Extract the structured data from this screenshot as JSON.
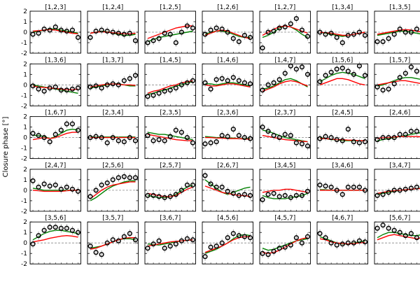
{
  "chart_data": {
    "type": "scatter",
    "ylabel": "Closure phase [°]",
    "ylim": [
      -2,
      2
    ],
    "yticks": [
      -2,
      -1,
      0,
      1,
      2
    ],
    "x_points": 9,
    "legend": [],
    "colors": {
      "observed": "#000000",
      "model_a": "#ff0000",
      "model_b": "#008000",
      "zero_line": "#888888"
    },
    "panels": [
      {
        "title": "[1,2,3]",
        "obs": [
          -0.2,
          -0.1,
          0.3,
          0.2,
          0.5,
          0.2,
          0.1,
          0.2,
          -0.5
        ],
        "red": [
          0.1,
          0.15,
          0.2,
          0.25,
          0.2,
          0.1,
          0.0,
          -0.1,
          -0.15
        ],
        "green": [
          0.0,
          0.1,
          0.2,
          0.3,
          0.3,
          0.2,
          0.1,
          0.0,
          -0.1
        ]
      },
      {
        "title": "[1,2,4]",
        "obs": [
          -0.5,
          0.1,
          0.2,
          0.1,
          0.0,
          -0.1,
          -0.2,
          -0.1,
          -0.8
        ],
        "red": [
          -0.1,
          0.0,
          0.05,
          0.0,
          -0.05,
          -0.1,
          -0.15,
          -0.15,
          -0.1
        ],
        "green": [
          -0.1,
          0.0,
          0.1,
          0.05,
          -0.1,
          -0.2,
          -0.3,
          -0.3,
          -0.2
        ]
      },
      {
        "title": "[1,2,5]",
        "obs": [
          -1.0,
          -0.8,
          -0.6,
          -0.1,
          -0.2,
          -1.0,
          0.0,
          0.6,
          0.4
        ],
        "red": [
          -0.6,
          -0.4,
          -0.2,
          0.0,
          0.2,
          0.4,
          0.5,
          0.6,
          0.6
        ],
        "green": [
          -0.9,
          -0.7,
          -0.5,
          -0.4,
          -0.3,
          -0.2,
          -0.1,
          0.0,
          0.1
        ]
      },
      {
        "title": "[1,2,6]",
        "obs": [
          -0.2,
          0.2,
          0.4,
          0.3,
          0.0,
          -0.6,
          -0.9,
          -0.3,
          -0.5
        ],
        "red": [
          -0.3,
          -0.1,
          0.1,
          0.2,
          0.1,
          -0.1,
          -0.3,
          -0.5,
          -0.6
        ],
        "green": [
          -0.2,
          0.0,
          0.1,
          0.1,
          0.0,
          -0.2,
          -0.4,
          -0.5,
          -0.5
        ]
      },
      {
        "title": "[1,2,7]",
        "obs": [
          -1.5,
          0.0,
          0.1,
          0.4,
          0.5,
          0.8,
          1.3,
          0.2,
          -0.4
        ],
        "red": [
          -0.3,
          0.0,
          0.3,
          0.5,
          0.6,
          0.5,
          0.3,
          0.1,
          -0.1
        ],
        "green": [
          -0.5,
          -0.3,
          0.0,
          0.4,
          0.6,
          0.5,
          0.2,
          -0.2,
          -0.5
        ]
      },
      {
        "title": "[1,3,4]",
        "obs": [
          0.0,
          -0.2,
          -0.1,
          -0.5,
          -1.0,
          -0.3,
          -0.2,
          0.0,
          -0.3
        ],
        "red": [
          0.0,
          -0.05,
          -0.1,
          -0.2,
          -0.3,
          -0.3,
          -0.2,
          -0.1,
          0.0
        ],
        "green": [
          0.0,
          -0.1,
          -0.2,
          -0.3,
          -0.4,
          -0.3,
          -0.2,
          -0.1,
          0.0
        ]
      },
      {
        "title": "[1,3,5]",
        "obs": [
          -0.9,
          -0.9,
          -0.6,
          -0.2,
          0.3,
          0.0,
          0.0,
          0.3,
          -0.8
        ],
        "red": [
          -0.2,
          -0.1,
          0.0,
          0.1,
          0.2,
          0.25,
          0.2,
          0.1,
          0.0
        ],
        "green": [
          -0.3,
          -0.2,
          -0.1,
          0.0,
          0.1,
          0.1,
          0.0,
          -0.1,
          -0.2
        ]
      },
      {
        "title": "[1,3,6]",
        "obs": [
          -0.1,
          -0.4,
          -0.6,
          -0.3,
          -0.2,
          -0.5,
          -0.5,
          -0.4,
          -0.3
        ],
        "red": [
          -0.1,
          -0.2,
          -0.25,
          -0.3,
          -0.35,
          -0.4,
          -0.45,
          -0.45,
          -0.4
        ],
        "green": [
          0.0,
          -0.1,
          -0.2,
          -0.3,
          -0.4,
          -0.5,
          -0.6,
          -0.7,
          -0.8
        ]
      },
      {
        "title": "[1,3,7]",
        "obs": [
          -0.2,
          -0.1,
          -0.3,
          0.0,
          0.1,
          0.0,
          0.4,
          0.6,
          0.9
        ],
        "red": [
          -0.2,
          -0.1,
          0.0,
          0.05,
          0.1,
          0.05,
          0.0,
          0.0,
          -0.05
        ],
        "green": [
          -0.3,
          -0.2,
          -0.1,
          0.0,
          0.1,
          0.1,
          0.0,
          -0.1,
          -0.1
        ]
      },
      {
        "title": "[1,4,5]",
        "obs": [
          -1.1,
          -1.0,
          -0.8,
          -0.6,
          -0.5,
          -0.3,
          0.0,
          0.2,
          0.4
        ],
        "red": [
          -0.8,
          -0.6,
          -0.5,
          -0.3,
          -0.1,
          0.0,
          0.2,
          0.3,
          0.4
        ],
        "green": [
          -0.9,
          -0.8,
          -0.6,
          -0.5,
          -0.3,
          -0.1,
          0.0,
          0.2,
          0.3
        ]
      },
      {
        "title": "[1,4,6]",
        "obs": [
          0.2,
          -0.4,
          0.5,
          0.6,
          0.4,
          0.7,
          0.4,
          0.2,
          0.1
        ],
        "red": [
          0.0,
          -0.1,
          -0.1,
          0.0,
          0.1,
          0.1,
          0.0,
          -0.1,
          -0.2
        ],
        "green": [
          0.1,
          0.1,
          0.0,
          0.1,
          0.2,
          0.2,
          0.1,
          0.0,
          -0.1
        ]
      },
      {
        "title": "[1,4,7]",
        "obs": [
          -0.5,
          0.0,
          0.2,
          0.5,
          1.1,
          1.8,
          1.5,
          1.7,
          1.0
        ],
        "red": [
          -0.6,
          -0.4,
          -0.2,
          0.1,
          0.3,
          0.4,
          0.3,
          0.1,
          -0.1
        ],
        "green": [
          -0.4,
          -0.3,
          -0.1,
          0.2,
          0.5,
          0.6,
          0.4,
          0.1,
          -0.2
        ]
      },
      {
        "title": "[1,5,6]",
        "obs": [
          0.3,
          0.9,
          1.2,
          1.5,
          1.6,
          1.3,
          1.0,
          1.8,
          0.9
        ],
        "red": [
          0.0,
          0.2,
          0.4,
          0.6,
          0.6,
          0.5,
          0.3,
          0.1,
          0.0
        ],
        "green": [
          0.3,
          0.6,
          0.9,
          1.1,
          1.2,
          1.1,
          1.0,
          0.8,
          0.6
        ]
      },
      {
        "title": "[1,5,7]",
        "obs": [
          -0.2,
          -0.5,
          -0.4,
          0.1,
          0.7,
          1.1,
          1.7,
          1.3,
          0.8
        ],
        "red": [
          0.0,
          0.1,
          0.2,
          0.3,
          0.4,
          0.4,
          0.3,
          0.2,
          0.1
        ],
        "green": [
          -0.1,
          0.0,
          0.2,
          0.4,
          0.6,
          0.7,
          0.7,
          0.6,
          0.5
        ]
      },
      {
        "title": "[1,6,7]",
        "obs": [
          0.4,
          0.2,
          0.0,
          -0.4,
          0.3,
          0.7,
          1.3,
          1.3,
          0.7
        ],
        "red": [
          -0.2,
          -0.1,
          0.0,
          -0.1,
          0.0,
          0.2,
          0.4,
          0.5,
          0.5
        ],
        "green": [
          0.2,
          0.2,
          0.1,
          -0.1,
          0.1,
          0.4,
          0.7,
          0.8,
          0.7
        ]
      },
      {
        "title": "[2,3,4]",
        "obs": [
          0.0,
          0.1,
          0.0,
          -0.5,
          0.0,
          -0.3,
          -0.4,
          0.0,
          -0.3
        ],
        "red": [
          0.0,
          0.0,
          0.0,
          0.0,
          0.0,
          0.0,
          0.0,
          0.0,
          0.0
        ],
        "green": [
          0.05,
          0.05,
          0.05,
          0.05,
          0.05,
          0.05,
          0.05,
          0.05,
          0.05
        ]
      },
      {
        "title": "[2,3,5]",
        "obs": [
          0.2,
          -0.3,
          -0.2,
          -0.3,
          0.1,
          0.7,
          0.5,
          0.0,
          -0.5
        ],
        "red": [
          0.3,
          0.2,
          0.1,
          0.0,
          -0.1,
          -0.2,
          -0.25,
          -0.3,
          -0.3
        ],
        "green": [
          0.5,
          0.4,
          0.3,
          0.3,
          0.2,
          0.1,
          0.0,
          -0.1,
          -0.2
        ]
      },
      {
        "title": "[2,3,6]",
        "obs": [
          -0.6,
          -0.5,
          -0.4,
          0.2,
          0.1,
          0.8,
          0.2,
          0.0,
          -0.1
        ],
        "red": [
          0.0,
          0.0,
          -0.05,
          -0.05,
          -0.1,
          -0.1,
          -0.1,
          -0.15,
          -0.15
        ],
        "green": [
          0.1,
          0.05,
          0.0,
          0.0,
          -0.05,
          -0.05,
          -0.1,
          -0.1,
          -0.1
        ]
      },
      {
        "title": "[2,3,7]",
        "obs": [
          1.0,
          0.6,
          0.2,
          0.0,
          0.3,
          0.2,
          -0.5,
          -0.6,
          -0.8
        ],
        "red": [
          0.2,
          0.1,
          0.0,
          -0.1,
          -0.2,
          -0.25,
          -0.3,
          -0.35,
          -0.4
        ],
        "green": [
          0.7,
          0.6,
          0.4,
          0.2,
          0.0,
          -0.1,
          -0.2,
          -0.3,
          -0.4
        ]
      },
      {
        "title": "[2,4,5]",
        "obs": [
          -0.1,
          0.1,
          0.0,
          -0.2,
          -0.3,
          0.8,
          -0.4,
          -0.5,
          -0.4
        ],
        "red": [
          -0.1,
          -0.1,
          -0.15,
          -0.2,
          -0.2,
          -0.25,
          -0.25,
          -0.3,
          -0.3
        ],
        "green": [
          0.0,
          -0.1,
          -0.2,
          -0.2,
          -0.3,
          -0.3,
          -0.3,
          -0.3,
          -0.3
        ]
      },
      {
        "title": "[2,4,6]",
        "obs": [
          -0.2,
          0.0,
          0.0,
          0.0,
          0.3,
          0.3,
          0.6,
          0.6,
          0.0
        ],
        "red": [
          -0.1,
          0.0,
          0.0,
          0.05,
          0.1,
          0.1,
          0.1,
          0.1,
          0.05
        ],
        "green": [
          -0.3,
          -0.2,
          -0.1,
          0.0,
          0.1,
          0.2,
          0.3,
          0.4,
          0.5
        ]
      },
      {
        "title": "[2,4,7]",
        "obs": [
          0.9,
          0.3,
          0.6,
          0.4,
          0.5,
          0.1,
          0.3,
          0.1,
          -0.1
        ],
        "red": [
          0.0,
          -0.05,
          -0.1,
          -0.1,
          -0.1,
          -0.1,
          -0.05,
          0.0,
          0.0
        ],
        "green": [
          0.2,
          0.1,
          0.0,
          0.0,
          0.0,
          0.0,
          0.0,
          0.0,
          0.0
        ]
      },
      {
        "title": "[2,5,6]",
        "obs": [
          -0.6,
          0.0,
          0.5,
          0.7,
          1.0,
          1.2,
          1.3,
          1.2,
          1.2
        ],
        "red": [
          -0.8,
          -0.4,
          0.0,
          0.3,
          0.5,
          0.6,
          0.7,
          0.8,
          0.8
        ],
        "green": [
          -1.0,
          -0.7,
          -0.3,
          0.1,
          0.4,
          0.6,
          0.8,
          0.9,
          0.9
        ]
      },
      {
        "title": "[2,5,7]",
        "obs": [
          -0.5,
          -0.5,
          -0.6,
          -0.7,
          -0.6,
          -0.4,
          0.0,
          0.5,
          0.5
        ],
        "red": [
          -0.3,
          -0.4,
          -0.5,
          -0.6,
          -0.6,
          -0.5,
          -0.2,
          0.1,
          0.3
        ],
        "green": [
          -0.5,
          -0.6,
          -0.7,
          -0.7,
          -0.6,
          -0.4,
          0.0,
          0.3,
          0.5
        ]
      },
      {
        "title": "[2,6,7]",
        "obs": [
          1.4,
          0.6,
          0.3,
          0.3,
          -0.1,
          -0.3,
          -0.5,
          -0.4,
          -0.5
        ],
        "red": [
          0.4,
          0.2,
          0.0,
          -0.2,
          -0.3,
          -0.4,
          -0.5,
          -0.5,
          -0.6
        ],
        "green": [
          1.0,
          0.6,
          0.2,
          -0.2,
          -0.4,
          -0.2,
          0.0,
          0.2,
          0.3
        ]
      },
      {
        "title": "[3,4,5]",
        "obs": [
          -0.9,
          -0.4,
          -0.3,
          -0.6,
          -0.5,
          -0.7,
          -0.5,
          -0.5,
          -0.1
        ],
        "red": [
          -0.2,
          -0.1,
          0.0,
          0.0,
          0.1,
          0.1,
          0.0,
          -0.1,
          -0.2
        ],
        "green": [
          -0.5,
          -0.7,
          -0.8,
          -0.8,
          -0.8,
          -0.7,
          -0.6,
          -0.5,
          -0.3
        ]
      },
      {
        "title": "[3,4,6]",
        "obs": [
          0.5,
          0.4,
          0.3,
          0.0,
          -0.4,
          0.3,
          0.3,
          0.3,
          0.0
        ],
        "red": [
          0.0,
          0.0,
          0.0,
          0.0,
          0.0,
          0.0,
          0.0,
          0.0,
          0.0
        ],
        "green": [
          0.05,
          0.05,
          0.0,
          0.0,
          0.0,
          0.0,
          0.0,
          0.0,
          0.0
        ]
      },
      {
        "title": "[3,4,7]",
        "obs": [
          -0.5,
          -0.4,
          -0.2,
          0.0,
          0.0,
          0.1,
          0.2,
          0.3,
          0.1
        ],
        "red": [
          -0.3,
          -0.2,
          -0.1,
          -0.05,
          0.0,
          0.05,
          0.1,
          0.15,
          0.15
        ],
        "green": [
          -0.4,
          -0.3,
          -0.2,
          -0.1,
          0.0,
          0.05,
          0.1,
          0.15,
          0.2
        ]
      },
      {
        "title": "[3,5,6]",
        "obs": [
          -0.1,
          0.7,
          1.2,
          1.5,
          1.5,
          1.4,
          1.4,
          1.2,
          1.0
        ],
        "red": [
          0.1,
          0.2,
          0.3,
          0.45,
          0.55,
          0.65,
          0.7,
          0.65,
          0.55
        ],
        "green": [
          0.3,
          0.6,
          0.9,
          1.1,
          1.2,
          1.2,
          1.1,
          1.0,
          0.9
        ]
      },
      {
        "title": "[3,5,7]",
        "obs": [
          -0.3,
          -0.9,
          -1.1,
          0.0,
          0.3,
          0.2,
          0.6,
          0.9,
          0.3
        ],
        "red": [
          -0.6,
          -0.5,
          -0.3,
          -0.1,
          0.1,
          0.3,
          0.45,
          0.5,
          0.5
        ],
        "green": [
          -0.5,
          -0.4,
          -0.3,
          -0.1,
          0.1,
          0.3,
          0.4,
          0.4,
          0.3
        ]
      },
      {
        "title": "[3,6,7]",
        "obs": [
          -0.5,
          -0.1,
          0.2,
          -0.5,
          -0.3,
          -0.1,
          0.2,
          0.4,
          0.3
        ],
        "red": [
          -0.3,
          -0.2,
          -0.1,
          0.0,
          0.1,
          0.15,
          0.2,
          0.25,
          0.3
        ],
        "green": [
          -0.1,
          -0.15,
          -0.2,
          -0.1,
          0.0,
          0.1,
          0.2,
          0.25,
          0.3
        ]
      },
      {
        "title": "[4,5,6]",
        "obs": [
          -1.3,
          -0.4,
          -0.3,
          0.0,
          0.5,
          0.9,
          0.7,
          0.6,
          0.5
        ],
        "red": [
          -0.9,
          -0.7,
          -0.5,
          -0.3,
          0.0,
          0.3,
          0.5,
          0.6,
          0.6
        ],
        "green": [
          -1.0,
          -0.8,
          -0.6,
          -0.3,
          0.0,
          0.4,
          0.7,
          0.8,
          0.7
        ]
      },
      {
        "title": "[4,5,7]",
        "obs": [
          -1.0,
          -1.1,
          -0.8,
          -0.5,
          -0.4,
          -0.2,
          0.5,
          0.0,
          0.6
        ],
        "red": [
          -0.9,
          -1.0,
          -0.9,
          -0.7,
          -0.4,
          -0.1,
          0.2,
          0.4,
          0.5
        ],
        "green": [
          -0.5,
          -0.7,
          -0.6,
          -0.4,
          -0.2,
          0.0,
          0.2,
          0.3,
          0.4
        ]
      },
      {
        "title": "[4,6,7]",
        "obs": [
          0.9,
          0.5,
          0.0,
          -0.2,
          -0.1,
          0.0,
          0.0,
          0.2,
          0.1
        ],
        "red": [
          0.4,
          0.3,
          0.1,
          0.0,
          -0.05,
          -0.1,
          -0.05,
          0.0,
          0.05
        ],
        "green": [
          0.6,
          0.4,
          0.2,
          0.0,
          -0.1,
          -0.1,
          0.0,
          0.1,
          0.2
        ]
      },
      {
        "title": "[5,6,7]",
        "obs": [
          1.4,
          1.7,
          1.4,
          1.2,
          1.0,
          0.7,
          0.9,
          0.5,
          0.9
        ],
        "red": [
          0.3,
          0.5,
          0.7,
          0.8,
          0.7,
          0.6,
          0.5,
          0.4,
          0.5
        ],
        "green": [
          0.5,
          0.8,
          1.0,
          1.0,
          0.9,
          0.8,
          0.7,
          0.7,
          0.8
        ]
      }
    ]
  }
}
